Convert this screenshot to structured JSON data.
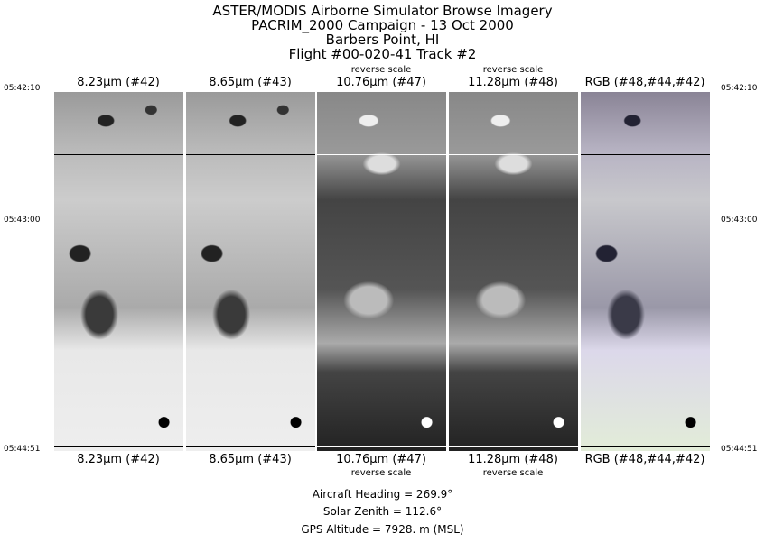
{
  "header": {
    "lines": [
      "ASTER/MODIS Airborne Simulator Browse Imagery",
      "PACRIM_2000 Campaign - 13 Oct 2000",
      "Barbers Point, HI",
      "Flight #00-020-41 Track #2"
    ]
  },
  "panels": [
    {
      "label": "8.23µm (#42)",
      "note": ""
    },
    {
      "label": "8.65µm (#43)",
      "note": ""
    },
    {
      "label": "10.76µm (#47)",
      "note": "reverse scale"
    },
    {
      "label": "11.28µm (#48)",
      "note": "reverse scale"
    },
    {
      "label": "RGB (#48,#44,#42)",
      "note": ""
    }
  ],
  "times": {
    "start": "05:42:10",
    "mid": "05:43:00",
    "end": "05:44:51"
  },
  "info": {
    "heading": "Aircraft Heading =  269.9°",
    "zenith": "Solar Zenith =  112.6°",
    "altitude": "GPS Altitude =   7928. m (MSL)"
  }
}
